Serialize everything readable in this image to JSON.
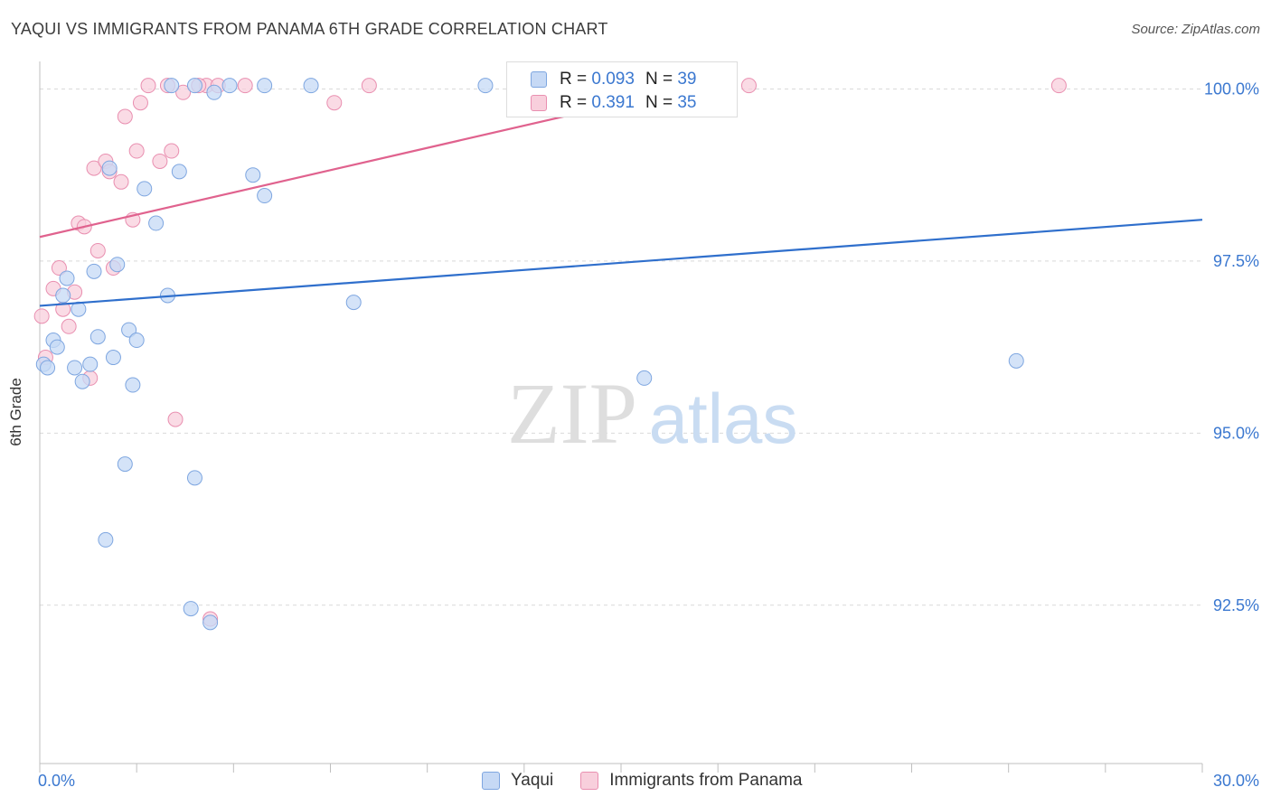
{
  "title": "YAQUI VS IMMIGRANTS FROM PANAMA 6TH GRADE CORRELATION CHART",
  "source": "Source: ZipAtlas.com",
  "watermark": {
    "part1": "ZIP",
    "part2": "atlas"
  },
  "legend_top": [
    {
      "series": "Yaqui",
      "r_label": "R =",
      "r_value": "0.093",
      "n_label": "N =",
      "n_value": "39"
    },
    {
      "series": "Immigrants from Panama",
      "r_label": "R =",
      "r_value": "0.391",
      "n_label": "N =",
      "n_value": "35"
    }
  ],
  "legend_bottom": [
    "Yaqui",
    "Immigrants from Panama"
  ],
  "colors": {
    "blue_fill": "#c6d9f5",
    "blue_stroke": "#7ea6e0",
    "blue_line": "#2f6fcc",
    "pink_fill": "#f8cfdc",
    "pink_stroke": "#e98fb0",
    "pink_line": "#e0628e",
    "tick_label": "#3b78d0",
    "grid": "#d9d9d9"
  },
  "chart_data": {
    "type": "scatter",
    "title": "YAQUI VS IMMIGRANTS FROM PANAMA 6TH GRADE CORRELATION CHART",
    "xlabel": "",
    "ylabel": "6th Grade",
    "xlim": [
      0,
      30
    ],
    "ylim": [
      90.2,
      100.4
    ],
    "x_tick_labels": [
      {
        "value": 0,
        "label": "0.0%"
      },
      {
        "value": 30,
        "label": "30.0%"
      }
    ],
    "y_tick_labels": [
      {
        "value": 100.0,
        "label": "100.0%"
      },
      {
        "value": 97.5,
        "label": "97.5%"
      },
      {
        "value": 95.0,
        "label": "95.0%"
      },
      {
        "value": 92.5,
        "label": "92.5%"
      }
    ],
    "series": [
      {
        "name": "Yaqui",
        "color": "#c6d9f5",
        "trend": {
          "x": [
            0,
            30
          ],
          "y": [
            96.85,
            98.1
          ]
        },
        "points": [
          {
            "x": 0.1,
            "y": 96.0
          },
          {
            "x": 0.2,
            "y": 95.95
          },
          {
            "x": 0.35,
            "y": 96.35
          },
          {
            "x": 0.45,
            "y": 96.25
          },
          {
            "x": 0.6,
            "y": 97.0
          },
          {
            "x": 0.7,
            "y": 97.25
          },
          {
            "x": 0.9,
            "y": 95.95
          },
          {
            "x": 1.0,
            "y": 96.8
          },
          {
            "x": 1.1,
            "y": 95.75
          },
          {
            "x": 1.4,
            "y": 97.35
          },
          {
            "x": 1.5,
            "y": 96.4
          },
          {
            "x": 1.8,
            "y": 98.85
          },
          {
            "x": 1.9,
            "y": 96.1
          },
          {
            "x": 2.0,
            "y": 97.45
          },
          {
            "x": 2.2,
            "y": 94.55
          },
          {
            "x": 2.3,
            "y": 96.5
          },
          {
            "x": 2.4,
            "y": 95.7
          },
          {
            "x": 2.5,
            "y": 96.35
          },
          {
            "x": 2.7,
            "y": 98.55
          },
          {
            "x": 3.0,
            "y": 98.05
          },
          {
            "x": 3.3,
            "y": 97.0
          },
          {
            "x": 3.6,
            "y": 98.8
          },
          {
            "x": 4.0,
            "y": 94.35
          },
          {
            "x": 4.4,
            "y": 92.25
          },
          {
            "x": 3.4,
            "y": 100.05
          },
          {
            "x": 4.0,
            "y": 100.05
          },
          {
            "x": 4.5,
            "y": 99.95
          },
          {
            "x": 4.9,
            "y": 100.05
          },
          {
            "x": 5.5,
            "y": 98.75
          },
          {
            "x": 5.8,
            "y": 98.45
          },
          {
            "x": 5.8,
            "y": 100.05
          },
          {
            "x": 7.0,
            "y": 100.05
          },
          {
            "x": 8.1,
            "y": 96.9
          },
          {
            "x": 11.5,
            "y": 100.05
          },
          {
            "x": 15.6,
            "y": 95.8
          },
          {
            "x": 25.2,
            "y": 96.05
          },
          {
            "x": 1.7,
            "y": 93.45
          },
          {
            "x": 3.9,
            "y": 92.45
          },
          {
            "x": 1.3,
            "y": 96.0
          }
        ]
      },
      {
        "name": "Immigrants from Panama",
        "color": "#f8cfdc",
        "trend": {
          "x": [
            0,
            17
          ],
          "y": [
            97.85,
            100.05
          ]
        },
        "points": [
          {
            "x": 0.05,
            "y": 96.7
          },
          {
            "x": 0.15,
            "y": 96.1
          },
          {
            "x": 0.35,
            "y": 97.1
          },
          {
            "x": 0.5,
            "y": 97.4
          },
          {
            "x": 0.6,
            "y": 96.8
          },
          {
            "x": 0.75,
            "y": 96.55
          },
          {
            "x": 0.9,
            "y": 97.05
          },
          {
            "x": 1.0,
            "y": 98.05
          },
          {
            "x": 1.15,
            "y": 98.0
          },
          {
            "x": 1.3,
            "y": 95.8
          },
          {
            "x": 1.4,
            "y": 98.85
          },
          {
            "x": 1.5,
            "y": 97.65
          },
          {
            "x": 1.7,
            "y": 98.95
          },
          {
            "x": 1.8,
            "y": 98.8
          },
          {
            "x": 1.9,
            "y": 97.4
          },
          {
            "x": 2.1,
            "y": 98.65
          },
          {
            "x": 2.2,
            "y": 99.6
          },
          {
            "x": 2.4,
            "y": 98.1
          },
          {
            "x": 2.5,
            "y": 99.1
          },
          {
            "x": 2.6,
            "y": 99.8
          },
          {
            "x": 2.8,
            "y": 100.05
          },
          {
            "x": 3.1,
            "y": 98.95
          },
          {
            "x": 3.3,
            "y": 100.05
          },
          {
            "x": 3.4,
            "y": 99.1
          },
          {
            "x": 3.5,
            "y": 95.2
          },
          {
            "x": 3.7,
            "y": 99.95
          },
          {
            "x": 4.3,
            "y": 100.05
          },
          {
            "x": 4.6,
            "y": 100.05
          },
          {
            "x": 4.4,
            "y": 92.3
          },
          {
            "x": 7.6,
            "y": 99.8
          },
          {
            "x": 8.5,
            "y": 100.05
          },
          {
            "x": 5.3,
            "y": 100.05
          },
          {
            "x": 18.3,
            "y": 100.05
          },
          {
            "x": 26.3,
            "y": 100.05
          },
          {
            "x": 4.1,
            "y": 100.05
          }
        ]
      }
    ]
  }
}
